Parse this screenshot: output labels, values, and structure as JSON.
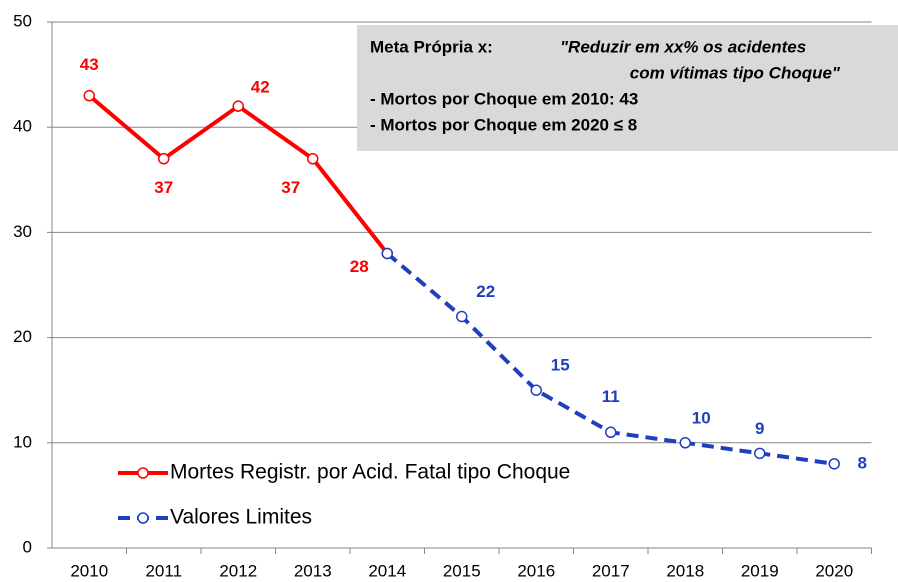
{
  "chart_data": {
    "type": "line",
    "categories": [
      "2010",
      "2011",
      "2012",
      "2013",
      "2014",
      "2015",
      "2016",
      "2017",
      "2018",
      "2019",
      "2020"
    ],
    "series": [
      {
        "name": "Mortes Registr. por Acid. Fatal tipo Choque",
        "color": "#ff0000",
        "dash": false,
        "values": [
          43,
          37,
          42,
          37,
          28,
          null,
          null,
          null,
          null,
          null,
          null
        ]
      },
      {
        "name": "Valores Limites",
        "color": "#1f3fbf",
        "dash": true,
        "values": [
          null,
          null,
          null,
          null,
          28,
          22,
          15,
          11,
          10,
          9,
          8
        ]
      }
    ],
    "ylim": [
      0,
      50
    ],
    "yticks": [
      0,
      10,
      20,
      30,
      40,
      50
    ],
    "grid": true,
    "legend": "lower left",
    "annotation": {
      "heading": "Meta Própria x:",
      "quote_1": "\"Reduzir em xx% os acidentes",
      "quote_2": "com vítimas tipo Choque\"",
      "line_1": "- Mortos por Choque em 2010: 43",
      "line_2": "- Mortos por Choque em 2020 ≤ 8"
    }
  }
}
